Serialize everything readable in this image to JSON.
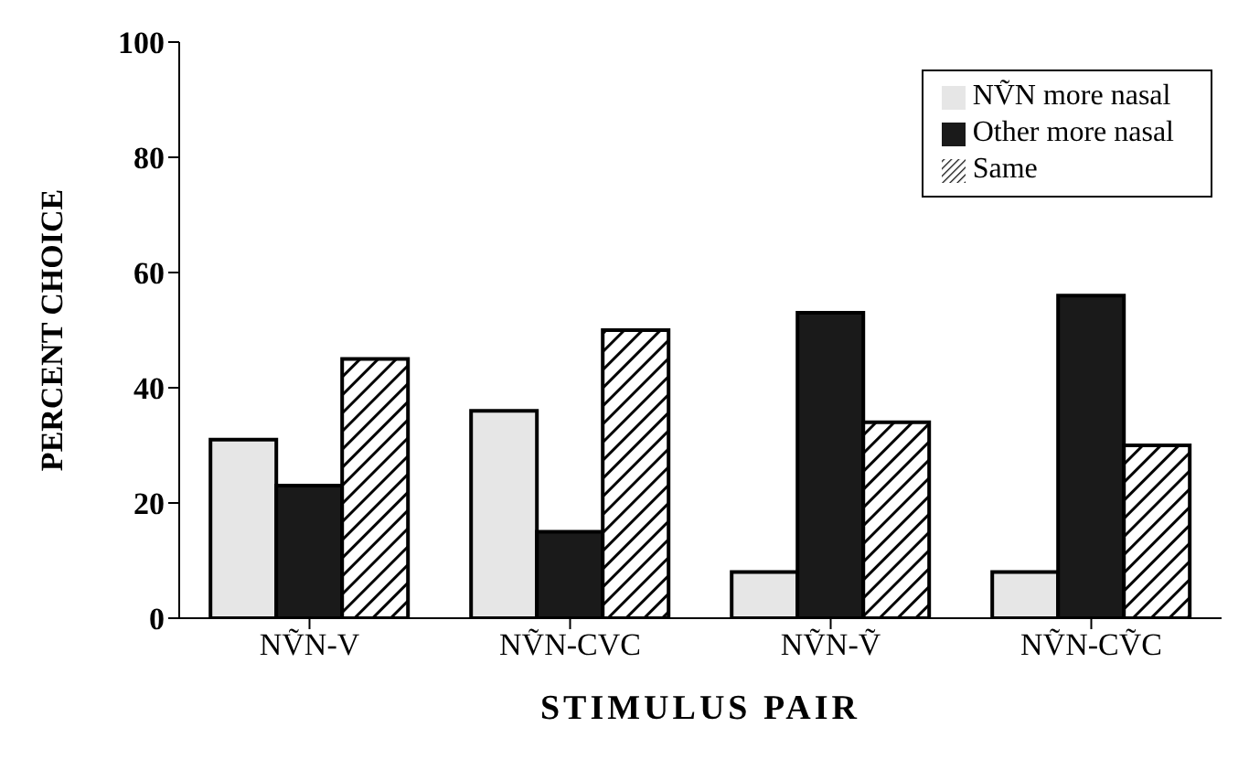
{
  "chart_data": {
    "type": "bar",
    "xlabel": "STIMULUS PAIR",
    "ylabel": "PERCENT CHOICE",
    "categories": [
      "NṼN-V",
      "NṼN-CVC",
      "NṼN-Ṽ",
      "NṼN-CṼC"
    ],
    "series": [
      {
        "name": "NṼN more nasal",
        "color": "#e6e6e6",
        "values": [
          31,
          36,
          8,
          8
        ]
      },
      {
        "name": "Other more nasal",
        "color": "#1a1a1a",
        "values": [
          23,
          15,
          53,
          56
        ]
      },
      {
        "name": "Same",
        "color": "#000000",
        "values": [
          45,
          50,
          34,
          30
        ]
      }
    ],
    "ylim": [
      0,
      100
    ],
    "yticks": [
      0,
      20,
      40,
      60,
      80,
      100
    ],
    "grid": false,
    "legend": "top right"
  }
}
